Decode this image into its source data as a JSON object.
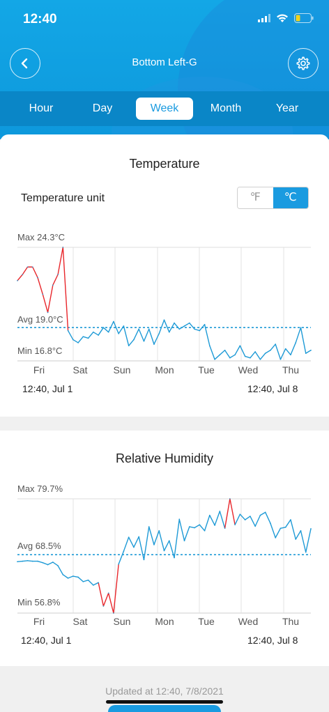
{
  "status_bar": {
    "time": "12:40"
  },
  "header": {
    "title": "Bottom Left-G"
  },
  "tabs": [
    {
      "label": "Hour",
      "active": false
    },
    {
      "label": "Day",
      "active": false
    },
    {
      "label": "Week",
      "active": true
    },
    {
      "label": "Month",
      "active": false
    },
    {
      "label": "Year",
      "active": false
    }
  ],
  "temperature": {
    "title": "Temperature",
    "unit_label": "Temperature unit",
    "unit_f": "℉",
    "unit_c": "℃",
    "selected_unit": "℃",
    "max_label": "Max 24.3°C",
    "avg_label": "Avg 19.0°C",
    "min_label": "Min 16.8°C",
    "days": [
      "Fri",
      "Sat",
      "Sun",
      "Mon",
      "Tue",
      "Wed",
      "Thu"
    ],
    "start_date": "12:40,  Jul 1",
    "end_date": "12:40,  Jul 8"
  },
  "humidity": {
    "title": "Relative Humidity",
    "max_label": "Max 79.7%",
    "avg_label": "Avg 68.5%",
    "min_label": "Min 56.8%",
    "days": [
      "Fri",
      "Sat",
      "Sun",
      "Mon",
      "Tue",
      "Wed",
      "Thu"
    ],
    "start_date": "12:40,  Jul 1",
    "end_date": "12:40,  Jul 8"
  },
  "footer": {
    "updated": "Updated at 12:40,  7/8/2021"
  },
  "colors": {
    "accent": "#1a9be0",
    "line": "#1e9ad6",
    "high": "#e8262b"
  },
  "chart_data": [
    {
      "type": "line",
      "title": "Temperature",
      "unit": "°C",
      "ylim": [
        16.8,
        24.3
      ],
      "avg": 19.0,
      "x_start": "Jul 1 12:40",
      "x_end": "Jul 8 12:40",
      "series": [
        {
          "values": [
            22.1,
            22.5,
            23.0,
            23.0,
            22.3,
            21.2,
            20.0,
            21.8,
            22.5,
            24.3,
            18.8,
            18.2,
            18.0,
            18.4,
            18.3,
            18.7,
            18.5,
            19.0,
            18.7,
            19.4,
            18.6,
            19.1,
            17.8,
            18.2,
            18.9,
            18.1,
            18.9,
            17.9,
            18.6,
            19.5,
            18.7,
            19.3,
            18.9,
            19.1,
            19.3,
            18.9,
            18.8,
            19.2,
            17.8,
            16.9,
            17.2,
            17.5,
            17.0,
            17.2,
            17.8,
            17.1,
            17.0,
            17.4,
            16.9,
            17.3,
            17.5,
            17.9,
            16.9,
            17.6,
            17.2,
            18.0,
            19.0,
            17.3,
            17.5
          ]
        }
      ]
    },
    {
      "type": "line",
      "title": "Relative Humidity",
      "unit": "%",
      "ylim": [
        56.8,
        79.7
      ],
      "avg": 68.5,
      "x_start": "Jul 1 12:40",
      "x_end": "Jul 8 12:40",
      "series": [
        {
          "values": [
            67.1,
            67.2,
            67.3,
            67.2,
            67.2,
            66.9,
            66.5,
            67.0,
            66.3,
            64.5,
            63.8,
            64.2,
            64.0,
            63.1,
            63.4,
            62.4,
            62.9,
            58.2,
            60.8,
            56.8,
            66.6,
            69.2,
            72.0,
            70.0,
            72.1,
            67.5,
            74.1,
            70.5,
            73.3,
            69.3,
            71.3,
            67.9,
            75.6,
            71.3,
            74.1,
            73.9,
            74.5,
            73.3,
            76.4,
            74.4,
            77.2,
            73.8,
            79.7,
            74.5,
            76.6,
            75.5,
            76.2,
            74.2,
            76.4,
            77.0,
            74.8,
            71.9,
            73.8,
            74.0,
            75.5,
            71.6,
            73.3,
            69.0,
            73.7
          ]
        }
      ]
    }
  ]
}
